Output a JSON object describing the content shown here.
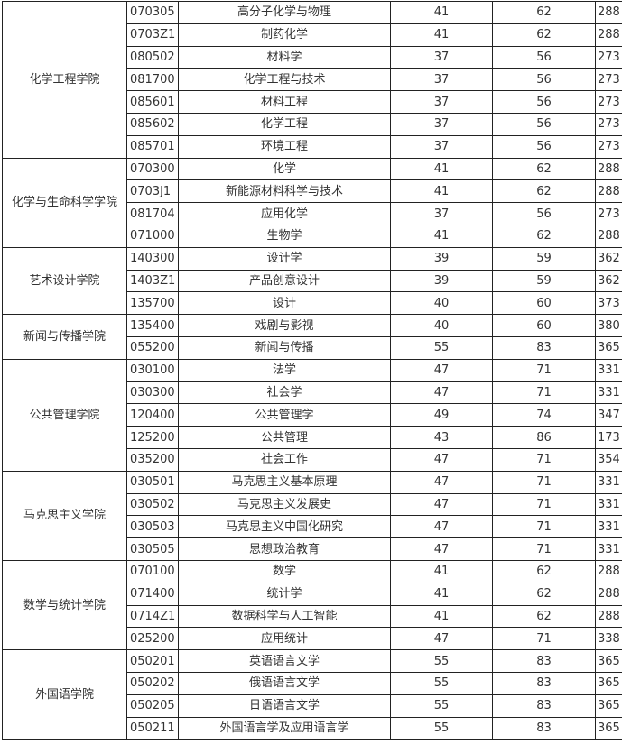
{
  "groups": [
    {
      "college": "化学工程学院",
      "rows": [
        [
          "070305",
          "高分子化学与物理",
          "41",
          "62",
          "288"
        ],
        [
          "0703Z1",
          "制药化学",
          "41",
          "62",
          "288"
        ],
        [
          "080502",
          "材料学",
          "37",
          "56",
          "273"
        ],
        [
          "081700",
          "化学工程与技术",
          "37",
          "56",
          "273"
        ],
        [
          "085601",
          "材料工程",
          "37",
          "56",
          "273"
        ],
        [
          "085602",
          "化学工程",
          "37",
          "56",
          "273"
        ],
        [
          "085701",
          "环境工程",
          "37",
          "56",
          "273"
        ]
      ]
    },
    {
      "college": "化学与生命科学学院",
      "rows": [
        [
          "070300",
          "化学",
          "41",
          "62",
          "288"
        ],
        [
          "0703J1",
          "新能源材料科学与技术",
          "41",
          "62",
          "288"
        ],
        [
          "081704",
          "应用化学",
          "37",
          "56",
          "273"
        ],
        [
          "071000",
          "生物学",
          "41",
          "62",
          "288"
        ]
      ]
    },
    {
      "college": "艺术设计学院",
      "rows": [
        [
          "140300",
          "设计学",
          "39",
          "59",
          "362"
        ],
        [
          "1403Z1",
          "产品创意设计",
          "39",
          "59",
          "362"
        ],
        [
          "135700",
          "设计",
          "40",
          "60",
          "373"
        ]
      ]
    },
    {
      "college": "新闻与传播学院",
      "rows": [
        [
          "135400",
          "戏剧与影视",
          "40",
          "60",
          "380"
        ],
        [
          "055200",
          "新闻与传播",
          "55",
          "83",
          "365"
        ]
      ]
    },
    {
      "college": "公共管理学院",
      "rows": [
        [
          "030100",
          "法学",
          "47",
          "71",
          "331"
        ],
        [
          "030300",
          "社会学",
          "47",
          "71",
          "331"
        ],
        [
          "120400",
          "公共管理学",
          "49",
          "74",
          "347"
        ],
        [
          "125200",
          "公共管理",
          "43",
          "86",
          "173"
        ],
        [
          "035200",
          "社会工作",
          "47",
          "71",
          "354"
        ]
      ]
    },
    {
      "college": "马克思主义学院",
      "rows": [
        [
          "030501",
          "马克思主义基本原理",
          "47",
          "71",
          "331"
        ],
        [
          "030502",
          "马克思主义发展史",
          "47",
          "71",
          "331"
        ],
        [
          "030503",
          "马克思主义中国化研究",
          "47",
          "71",
          "331"
        ],
        [
          "030505",
          "思想政治教育",
          "47",
          "71",
          "331"
        ]
      ]
    },
    {
      "college": "数学与统计学院",
      "rows": [
        [
          "070100",
          "数学",
          "41",
          "62",
          "288"
        ],
        [
          "071400",
          "统计学",
          "41",
          "62",
          "288"
        ],
        [
          "0714Z1",
          "数据科学与人工智能",
          "41",
          "62",
          "288"
        ],
        [
          "025200",
          "应用统计",
          "47",
          "71",
          "338"
        ]
      ]
    },
    {
      "college": "外国语学院",
      "rows": [
        [
          "050201",
          "英语语言文学",
          "55",
          "83",
          "365"
        ],
        [
          "050202",
          "俄语语言文学",
          "55",
          "83",
          "365"
        ],
        [
          "050205",
          "日语语言文学",
          "55",
          "83",
          "365"
        ],
        [
          "050211",
          "外国语言学及应用语言学",
          "55",
          "83",
          "365"
        ]
      ]
    }
  ]
}
